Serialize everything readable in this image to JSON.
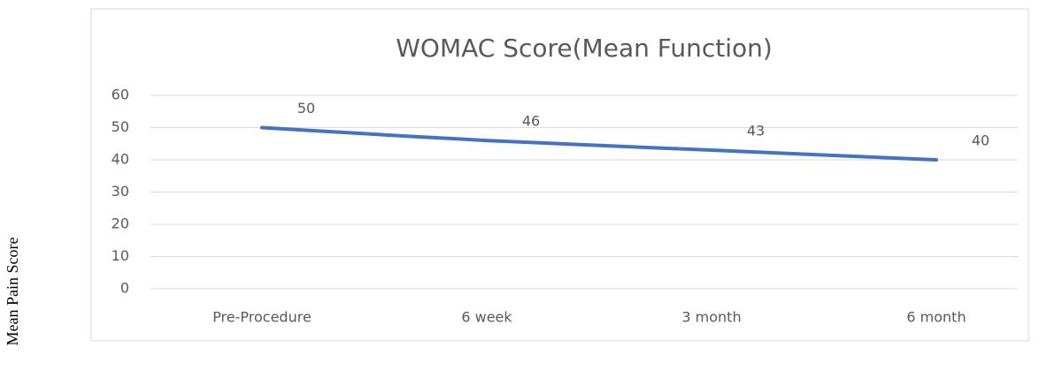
{
  "chart_data": {
    "type": "line",
    "title": "WOMAC Score(Mean Function)",
    "y_label": "Mean Pain Score",
    "categories": [
      "Pre-Procedure",
      "6 week",
      "3 month",
      "6 month"
    ],
    "values": [
      50,
      46,
      43,
      40
    ],
    "color": "#4472c4",
    "ylim": [
      0,
      60
    ],
    "yticks": [
      0,
      10,
      20,
      30,
      40,
      50,
      60
    ],
    "grid": true,
    "smooth": true,
    "data_labels": true
  }
}
